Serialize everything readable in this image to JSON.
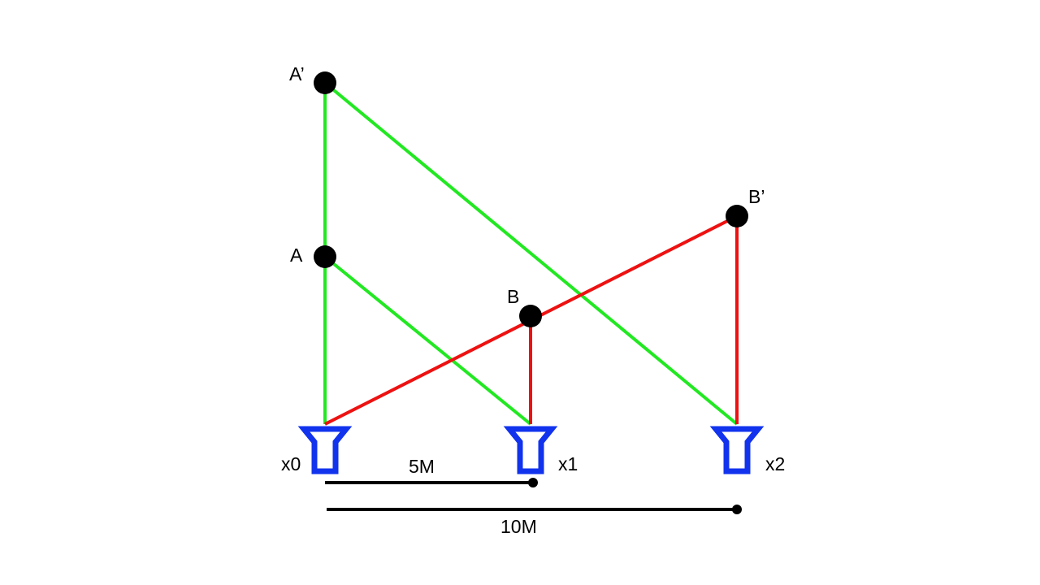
{
  "colors": {
    "background": "#ffffff",
    "green_ray": "#22e822",
    "red_ray": "#ee1111",
    "sensor": "#1133ee",
    "point": "#000000",
    "scale_bar": "#000000"
  },
  "points": {
    "a_prime": "A’",
    "a": "A",
    "b": "B",
    "b_prime": "B’"
  },
  "sensors": {
    "x0": "x0",
    "x1": "x1",
    "x2": "x2"
  },
  "scale": {
    "short_label": "5M",
    "long_label": "10M"
  }
}
